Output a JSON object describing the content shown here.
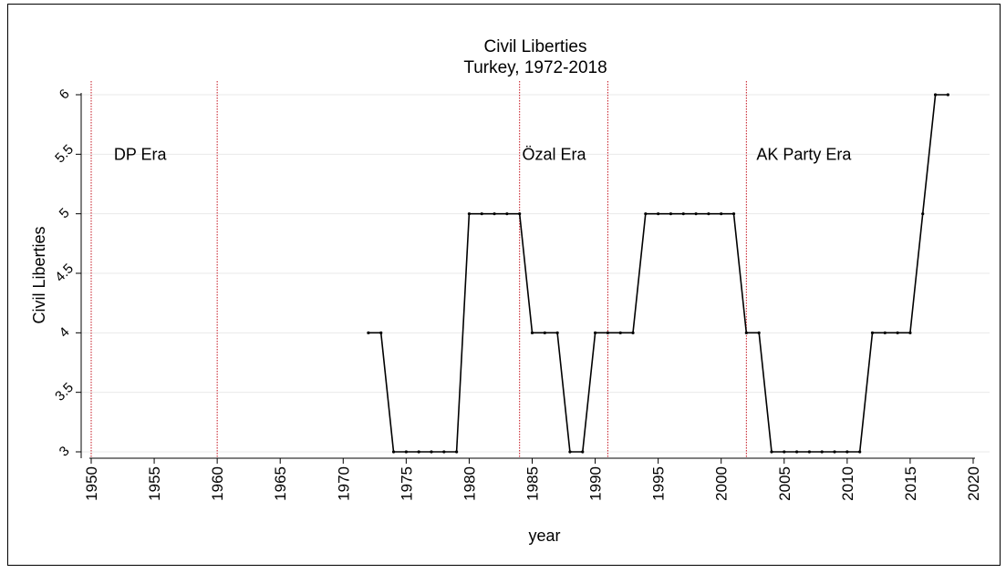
{
  "chart_data": {
    "type": "line",
    "title": "Civil Liberties",
    "subtitle": "Turkey, 1972-2018",
    "xlabel": "year",
    "ylabel": "Civil Liberties",
    "xlim": [
      1950,
      2020
    ],
    "ylim": [
      3,
      6
    ],
    "x_ticks": [
      1950,
      1955,
      1960,
      1965,
      1970,
      1975,
      1980,
      1985,
      1990,
      1995,
      2000,
      2005,
      2010,
      2015,
      2020
    ],
    "y_ticks": [
      3,
      3.5,
      4,
      4.5,
      5,
      5.5,
      6
    ],
    "y_tick_labels": [
      "3",
      "3.5",
      "4",
      "4.5",
      "5",
      "5.5",
      "6"
    ],
    "grid": "horizontal",
    "series": [
      {
        "x": [
          1972,
          1973,
          1974,
          1975,
          1976,
          1977,
          1978,
          1979,
          1980,
          1981,
          1982,
          1983,
          1984,
          1985,
          1986,
          1987,
          1988,
          1989,
          1990,
          1991,
          1992,
          1993,
          1994,
          1995,
          1996,
          1997,
          1998,
          1999,
          2000,
          2001,
          2002,
          2003,
          2004,
          2005,
          2006,
          2007,
          2008,
          2009,
          2010,
          2011,
          2012,
          2013,
          2014,
          2015,
          2016,
          2017,
          2018
        ],
        "values": [
          4,
          4,
          3,
          3,
          3,
          3,
          3,
          3,
          5,
          5,
          5,
          5,
          5,
          4,
          4,
          4,
          3,
          3,
          4,
          4,
          4,
          4,
          5,
          5,
          5,
          5,
          5,
          5,
          5,
          5,
          4,
          4,
          3,
          3,
          3,
          3,
          3,
          3,
          3,
          3,
          4,
          4,
          4,
          4,
          5,
          6,
          6
        ],
        "color": "#000000"
      }
    ],
    "vlines": [
      {
        "x": 1950,
        "color": "#c4121d"
      },
      {
        "x": 1960,
        "color": "#c4121d"
      },
      {
        "x": 1984,
        "color": "#c4121d"
      },
      {
        "x": 1991,
        "color": "#c4121d"
      },
      {
        "x": 2002,
        "color": "#c4121d"
      }
    ],
    "annotations": [
      {
        "text": "DP Era",
        "x": 1951.8,
        "y": 5.5
      },
      {
        "text": "Özal Era",
        "x": 1984.2,
        "y": 5.5
      },
      {
        "text": "AK Party Era",
        "x": 2002.8,
        "y": 5.5
      }
    ],
    "gridline_color": "#eaeaea"
  }
}
